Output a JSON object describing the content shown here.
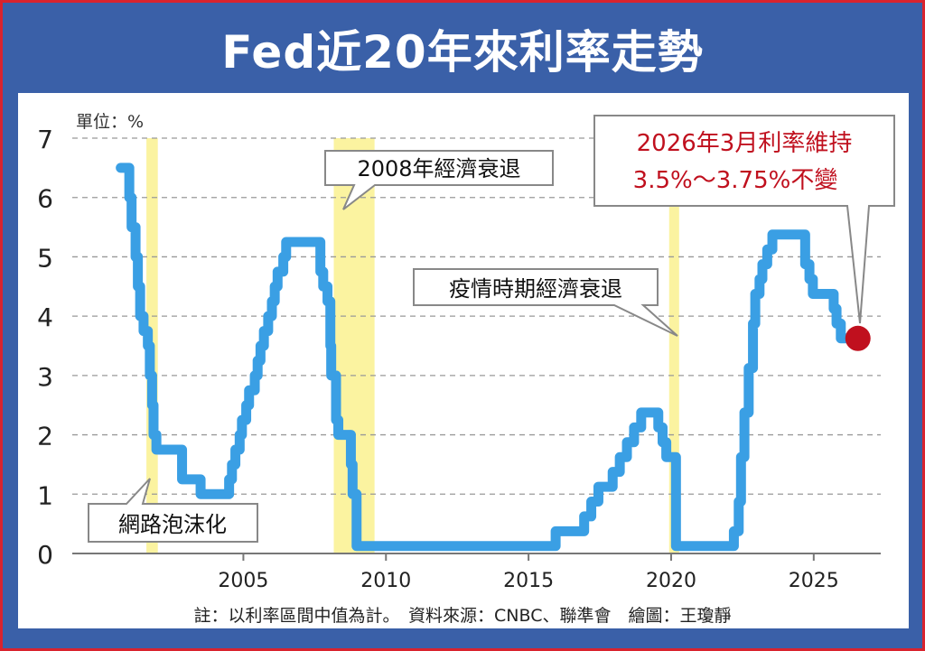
{
  "chart_data": {
    "type": "line",
    "title": "Fed近20年來利率走勢",
    "unit_label": "單位：%",
    "xlim": [
      1999,
      2027.35
    ],
    "ylim": [
      0,
      7
    ],
    "yticks": [
      "0",
      "1",
      "2",
      "3",
      "4",
      "5",
      "6",
      "7"
    ],
    "xticks": [
      "2005",
      "2010",
      "2015",
      "2020",
      "2025"
    ],
    "grid": true,
    "line_color": "#3a9fe4",
    "marker_color": "#c0101e",
    "band_color": "#fbf3a0",
    "recessions": [
      {
        "label": "網路泡沫化",
        "start": 2001.6,
        "end": 2002.0
      },
      {
        "label": "2008年經濟衰退",
        "start": 2008.17,
        "end": 2009.6
      },
      {
        "label": "疫情時期經濟衰退",
        "start": 2019.93,
        "end": 2020.28
      }
    ],
    "series": [
      {
        "step": true,
        "points": [
          [
            2000.7,
            6.5
          ],
          [
            2001.0,
            6.0
          ],
          [
            2001.08,
            5.5
          ],
          [
            2001.22,
            5.0
          ],
          [
            2001.3,
            4.5
          ],
          [
            2001.38,
            4.0
          ],
          [
            2001.5,
            3.75
          ],
          [
            2001.65,
            3.5
          ],
          [
            2001.72,
            3.0
          ],
          [
            2001.8,
            2.5
          ],
          [
            2001.85,
            2.0
          ],
          [
            2001.95,
            1.75
          ],
          [
            2002.85,
            1.25
          ],
          [
            2003.5,
            1.0
          ],
          [
            2004.5,
            1.25
          ],
          [
            2004.6,
            1.5
          ],
          [
            2004.72,
            1.75
          ],
          [
            2004.87,
            2.0
          ],
          [
            2004.95,
            2.25
          ],
          [
            2005.1,
            2.5
          ],
          [
            2005.2,
            2.75
          ],
          [
            2005.4,
            3.0
          ],
          [
            2005.5,
            3.25
          ],
          [
            2005.6,
            3.5
          ],
          [
            2005.72,
            3.75
          ],
          [
            2005.87,
            4.0
          ],
          [
            2006.0,
            4.25
          ],
          [
            2006.1,
            4.5
          ],
          [
            2006.2,
            4.75
          ],
          [
            2006.4,
            5.0
          ],
          [
            2006.5,
            5.25
          ],
          [
            2007.7,
            4.75
          ],
          [
            2007.8,
            4.5
          ],
          [
            2007.95,
            4.25
          ],
          [
            2008.05,
            3.5
          ],
          [
            2008.08,
            3.0
          ],
          [
            2008.25,
            2.25
          ],
          [
            2008.33,
            2.0
          ],
          [
            2008.77,
            1.5
          ],
          [
            2008.83,
            1.0
          ],
          [
            2008.97,
            0.125
          ],
          [
            2015.95,
            0.375
          ],
          [
            2016.95,
            0.625
          ],
          [
            2017.2,
            0.875
          ],
          [
            2017.45,
            1.125
          ],
          [
            2017.95,
            1.375
          ],
          [
            2018.2,
            1.625
          ],
          [
            2018.45,
            1.875
          ],
          [
            2018.7,
            2.125
          ],
          [
            2018.95,
            2.375
          ],
          [
            2019.55,
            2.125
          ],
          [
            2019.7,
            1.875
          ],
          [
            2019.83,
            1.625
          ],
          [
            2020.17,
            0.125
          ],
          [
            2022.2,
            0.375
          ],
          [
            2022.37,
            0.875
          ],
          [
            2022.45,
            1.625
          ],
          [
            2022.57,
            2.375
          ],
          [
            2022.72,
            3.125
          ],
          [
            2022.87,
            3.875
          ],
          [
            2022.95,
            4.375
          ],
          [
            2023.1,
            4.625
          ],
          [
            2023.2,
            4.875
          ],
          [
            2023.37,
            5.125
          ],
          [
            2023.55,
            5.375
          ],
          [
            2024.7,
            4.875
          ],
          [
            2024.85,
            4.625
          ],
          [
            2024.97,
            4.375
          ],
          [
            2025.7,
            4.125
          ],
          [
            2025.8,
            3.875
          ],
          [
            2025.95,
            3.625
          ],
          [
            2026.55,
            3.625
          ]
        ]
      }
    ],
    "highlight_point": [
      2026.55,
      3.625
    ],
    "annotation": [
      "2026年3月利率維持",
      "3.5%～3.75%不變"
    ]
  },
  "footer": "註：以利率區間中值為計。　資料來源：CNBC、聯準會　繪圖：王瓊靜"
}
